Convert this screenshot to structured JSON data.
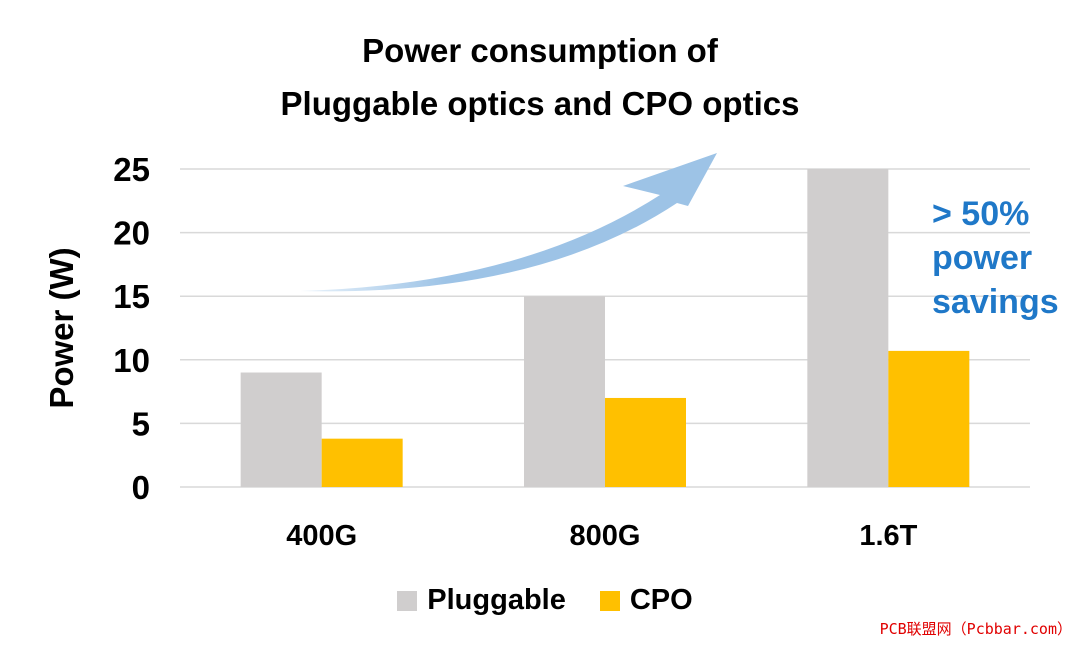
{
  "chart_data": {
    "type": "bar",
    "title_lines": [
      "Power consumption of",
      "Pluggable optics and CPO optics"
    ],
    "xlabel": "",
    "ylabel": "Power (W)",
    "categories": [
      "400G",
      "800G",
      "1.6T"
    ],
    "series": [
      {
        "name": "Pluggable",
        "values": [
          9,
          15,
          25
        ],
        "color": "#d0cece"
      },
      {
        "name": "CPO",
        "values": [
          3.8,
          7,
          10.7
        ],
        "color": "#ffc000"
      }
    ],
    "ylim": [
      0,
      25
    ],
    "yticks": [
      "0",
      "5",
      "10",
      "15",
      "20",
      "25"
    ],
    "grid": true,
    "legend_position": "bottom",
    "annotation_lines": [
      "> 50%",
      "power",
      "savings"
    ],
    "arrow_color": "#9dc3e6",
    "annotation_color": "#1f78c8"
  },
  "watermark": "PCB联盟网（Pcbbar.com）"
}
